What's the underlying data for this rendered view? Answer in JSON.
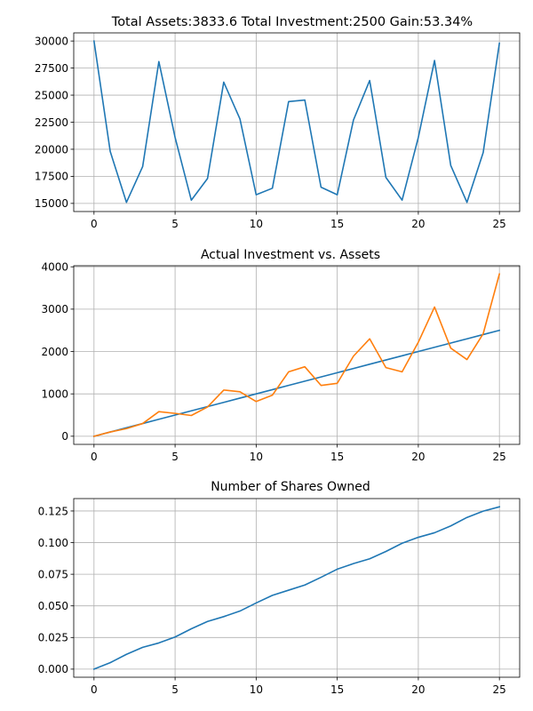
{
  "chart_data": [
    {
      "type": "line",
      "title": "Total Assets:3833.6  Total Investment:2500  Gain:53.34%",
      "xlabel": "",
      "ylabel": "",
      "xlim": [
        -1.25,
        26.25
      ],
      "ylim": [
        14250,
        30750
      ],
      "grid": true,
      "x_ticks": [
        0,
        5,
        10,
        15,
        20,
        25
      ],
      "x_tick_labels": [
        "0",
        "5",
        "10",
        "15",
        "20",
        "25"
      ],
      "y_ticks": [
        15000,
        17500,
        20000,
        22500,
        25000,
        27500,
        30000
      ],
      "y_tick_labels": [
        "15000",
        "17500",
        "20000",
        "22500",
        "25000",
        "27500",
        "30000"
      ],
      "series": [
        {
          "color": "#1f77b4",
          "x": [
            0,
            1,
            2,
            3,
            4,
            5,
            6,
            7,
            8,
            9,
            10,
            11,
            12,
            13,
            14,
            15,
            16,
            17,
            18,
            19,
            20,
            21,
            22,
            23,
            24,
            25
          ],
          "values": [
            30000,
            19800,
            15100,
            18400,
            28100,
            21100,
            15300,
            17300,
            26200,
            22800,
            15800,
            16400,
            24400,
            24550,
            16500,
            15800,
            22700,
            26350,
            17400,
            15300,
            21100,
            28200,
            18500,
            15100,
            19700,
            29800
          ]
        }
      ]
    },
    {
      "type": "line",
      "title": "Actual Investment vs. Assets",
      "xlabel": "",
      "ylabel": "",
      "xlim": [
        -1.25,
        26.25
      ],
      "ylim": [
        -192,
        4025
      ],
      "grid": true,
      "x_ticks": [
        0,
        5,
        10,
        15,
        20,
        25
      ],
      "x_tick_labels": [
        "0",
        "5",
        "10",
        "15",
        "20",
        "25"
      ],
      "y_ticks": [
        0,
        1000,
        2000,
        3000,
        4000
      ],
      "y_tick_labels": [
        "0",
        "1000",
        "2000",
        "3000",
        "4000"
      ],
      "series": [
        {
          "color": "#1f77b4",
          "x": [
            0,
            1,
            2,
            3,
            4,
            5,
            6,
            7,
            8,
            9,
            10,
            11,
            12,
            13,
            14,
            15,
            16,
            17,
            18,
            19,
            20,
            21,
            22,
            23,
            24,
            25
          ],
          "values": [
            0,
            100,
            200,
            300,
            400,
            500,
            600,
            700,
            800,
            900,
            1000,
            1100,
            1200,
            1300,
            1400,
            1500,
            1600,
            1700,
            1800,
            1900,
            2000,
            2100,
            2200,
            2300,
            2400,
            2500
          ]
        },
        {
          "color": "#ff7f0e",
          "x": [
            0,
            1,
            2,
            3,
            4,
            5,
            6,
            7,
            8,
            9,
            10,
            11,
            12,
            13,
            14,
            15,
            16,
            17,
            18,
            19,
            20,
            21,
            22,
            23,
            24,
            25
          ],
          "values": [
            0,
            100,
            180,
            300,
            580,
            540,
            490,
            690,
            1090,
            1050,
            820,
            970,
            1520,
            1640,
            1200,
            1250,
            1890,
            2300,
            1620,
            1520,
            2220,
            3050,
            2080,
            1810,
            2420,
            3830
          ]
        }
      ]
    },
    {
      "type": "line",
      "title": "Number of Shares Owned",
      "xlabel": "",
      "ylabel": "",
      "xlim": [
        -1.25,
        26.25
      ],
      "ylim": [
        -0.0064,
        0.1348
      ],
      "grid": true,
      "x_ticks": [
        0,
        5,
        10,
        15,
        20,
        25
      ],
      "x_tick_labels": [
        "0",
        "5",
        "10",
        "15",
        "20",
        "25"
      ],
      "y_ticks": [
        0,
        0.025,
        0.05,
        0.075,
        0.1,
        0.125
      ],
      "y_tick_labels": [
        "0.000",
        "0.025",
        "0.050",
        "0.075",
        "0.100",
        "0.125"
      ],
      "series": [
        {
          "color": "#1f77b4",
          "x": [
            0,
            1,
            2,
            3,
            4,
            5,
            6,
            7,
            8,
            9,
            10,
            11,
            12,
            13,
            14,
            15,
            16,
            17,
            18,
            19,
            20,
            21,
            22,
            23,
            24,
            25
          ],
          "values": [
            0,
            0.0051,
            0.0117,
            0.0172,
            0.0207,
            0.0254,
            0.0319,
            0.0377,
            0.0415,
            0.0459,
            0.0523,
            0.0583,
            0.0624,
            0.0665,
            0.0726,
            0.079,
            0.0834,
            0.0872,
            0.093,
            0.0995,
            0.1042,
            0.1078,
            0.1132,
            0.1199,
            0.1249,
            0.1283
          ]
        }
      ]
    }
  ]
}
